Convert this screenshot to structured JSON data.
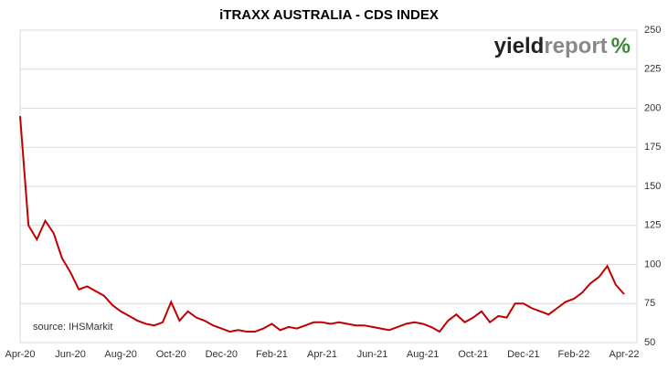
{
  "chart_data": {
    "type": "line",
    "title": "iTRAXX AUSTRALIA - CDS INDEX",
    "annotation": "source: IHSMarkit",
    "logo": {
      "first": "yield",
      "second": "report",
      "symbol": "%"
    },
    "categories": [
      "Apr-20",
      null,
      null,
      null,
      null,
      null,
      "Jun-20",
      null,
      null,
      null,
      null,
      null,
      "Aug-20",
      null,
      null,
      null,
      null,
      null,
      "Oct-20",
      null,
      null,
      null,
      null,
      null,
      "Dec-20",
      null,
      null,
      null,
      null,
      null,
      "Feb-21",
      null,
      null,
      null,
      null,
      null,
      "Apr-21",
      null,
      null,
      null,
      null,
      null,
      "Jun-21",
      null,
      null,
      null,
      null,
      null,
      "Aug-21",
      null,
      null,
      null,
      null,
      null,
      "Oct-21",
      null,
      null,
      null,
      null,
      null,
      "Dec-21",
      null,
      null,
      null,
      null,
      null,
      "Feb-22",
      null,
      null,
      null,
      null,
      null,
      "Apr-22"
    ],
    "series": [
      {
        "name": "iTRAXX Australia",
        "color": "#c00000",
        "values": [
          195,
          125,
          116,
          128,
          120,
          104,
          95,
          84,
          86,
          83,
          80,
          74,
          70,
          67,
          64,
          62,
          61,
          63,
          76,
          64,
          70,
          66,
          64,
          61,
          59,
          57,
          58,
          57,
          57,
          59,
          62,
          58,
          60,
          59,
          61,
          63,
          63,
          62,
          63,
          62,
          61,
          61,
          60,
          59,
          58,
          60,
          62,
          63,
          62,
          60,
          57,
          64,
          68,
          63,
          66,
          70,
          63,
          67,
          66,
          75,
          75,
          72,
          70,
          68,
          72,
          76,
          78,
          82,
          88,
          92,
          99,
          87,
          81
        ]
      }
    ],
    "ylim": [
      50,
      250
    ],
    "yticks": [
      50,
      75,
      100,
      125,
      150,
      175,
      200,
      225,
      250
    ],
    "grid": true
  }
}
